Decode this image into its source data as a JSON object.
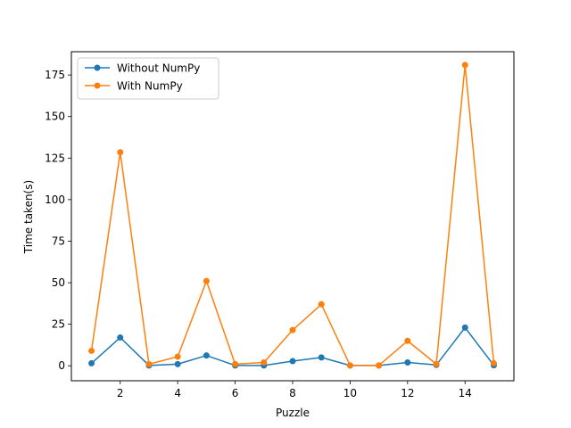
{
  "chart_data": {
    "type": "line",
    "title": "",
    "xlabel": "Puzzle",
    "ylabel": "Time taken(s)",
    "xlim": [
      0.3,
      15.7
    ],
    "ylim": [
      -9,
      189
    ],
    "xticks": [
      2,
      4,
      6,
      8,
      10,
      12,
      14
    ],
    "yticks": [
      0,
      25,
      50,
      75,
      100,
      125,
      150,
      175
    ],
    "grid": false,
    "legend_position": "upper-left",
    "x": [
      1,
      2,
      3,
      4,
      5,
      6,
      7,
      8,
      9,
      10,
      11,
      12,
      13,
      14,
      15
    ],
    "series": [
      {
        "name": "Without NumPy",
        "color": "#1f77b4",
        "values": [
          1.5,
          17,
          0.2,
          1,
          6.2,
          0.2,
          0.2,
          2.8,
          5,
          0.2,
          0.2,
          2,
          0.5,
          23,
          0.3
        ]
      },
      {
        "name": "With NumPy",
        "color": "#ff7f0e",
        "values": [
          9,
          128.5,
          1,
          5.5,
          51,
          1,
          2,
          21.5,
          37,
          0.2,
          0.2,
          15,
          1,
          181,
          1.5
        ]
      }
    ]
  }
}
